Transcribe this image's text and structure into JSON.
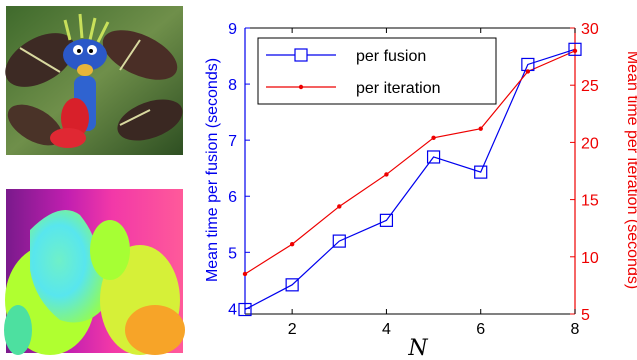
{
  "images": [
    {
      "name": "puppet-photo",
      "description": "color photo of blue puppet among leaves"
    },
    {
      "name": "flow-visualization",
      "description": "color-coded motion field"
    }
  ],
  "colors": {
    "left_axis": "#0000ee",
    "right_axis": "#ee0000",
    "frame": "#000000"
  },
  "chart_data": {
    "type": "line",
    "x": [
      1,
      2,
      3,
      4,
      5,
      6,
      7,
      8
    ],
    "xlabel": "N",
    "xlim": [
      1,
      8
    ],
    "xticks": [
      2,
      4,
      6,
      8
    ],
    "ylabel_left": "Mean time per fusion (seconds)",
    "ylim_left": [
      3.9,
      9
    ],
    "yticks_left": [
      4,
      5,
      6,
      7,
      8,
      9
    ],
    "ylabel_right": "Mean time per iteration (seconds)",
    "ylim_right": [
      5,
      30
    ],
    "yticks_right": [
      5,
      10,
      15,
      20,
      25,
      30
    ],
    "legend_position": "top-left",
    "grid": false,
    "series": [
      {
        "name": "per fusion",
        "axis": "left",
        "color": "#0000ee",
        "marker": "square",
        "values": [
          3.98,
          4.42,
          5.2,
          5.57,
          6.7,
          6.43,
          8.35,
          8.62
        ]
      },
      {
        "name": "per iteration",
        "axis": "right",
        "color": "#ee0000",
        "marker": "dot",
        "values": [
          8.5,
          11.1,
          14.4,
          17.2,
          20.4,
          21.2,
          26.2,
          28.0
        ]
      }
    ]
  }
}
